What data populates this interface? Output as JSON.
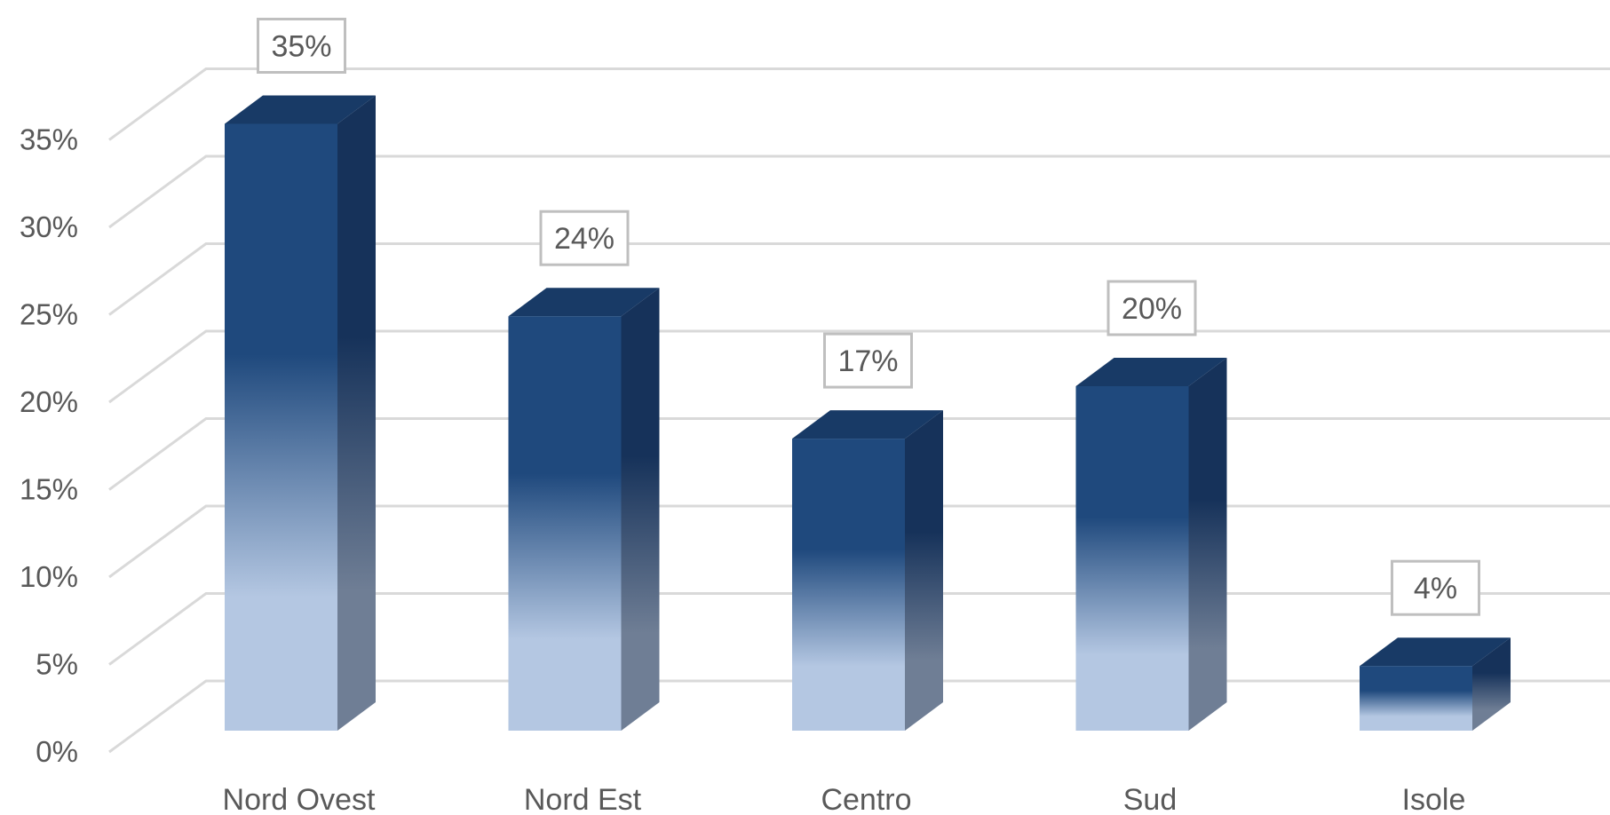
{
  "chart_data": {
    "type": "bar",
    "style": "3d-column",
    "categories": [
      "Nord Ovest",
      "Nord Est",
      "Centro",
      "Sud",
      "Isole"
    ],
    "values": [
      35,
      24,
      17,
      20,
      4
    ],
    "data_labels": [
      "35%",
      "24%",
      "17%",
      "20%",
      "4%"
    ],
    "y_ticks": [
      "0%",
      "5%",
      "10%",
      "15%",
      "20%",
      "25%",
      "30%",
      "35%"
    ],
    "ylim": [
      0,
      35
    ],
    "y_tick_step": 5,
    "grid": true,
    "legend": "none",
    "colors": {
      "front_top": "#1f497d",
      "front_bottom": "#b4c7e2",
      "side_top": "#16325a",
      "side_bottom": "#6f7e95",
      "top_face": "#183a66",
      "grid": "#d9d9d9",
      "text": "#595959"
    }
  }
}
